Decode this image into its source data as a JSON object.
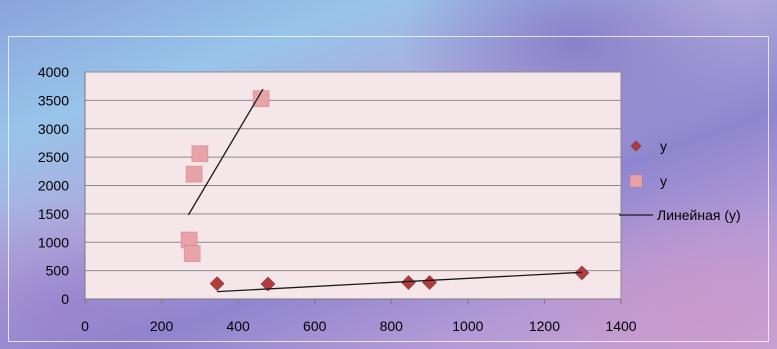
{
  "chart_data": {
    "type": "scatter",
    "title": "",
    "xlabel": "",
    "ylabel": "",
    "xlim": [
      0,
      1400
    ],
    "ylim": [
      0,
      4000
    ],
    "x_ticks": [
      0,
      200,
      400,
      600,
      800,
      1000,
      1200,
      1400
    ],
    "y_ticks": [
      0,
      500,
      1000,
      1500,
      2000,
      2500,
      3000,
      3500,
      4000
    ],
    "grid": "horizontal",
    "legend_position": "right",
    "plot_background": "#f5e6ea",
    "series": [
      {
        "name": "y",
        "marker": "diamond",
        "color": "#b23c3c",
        "points": [
          [
            345,
            270
          ],
          [
            478,
            265
          ],
          [
            845,
            290
          ],
          [
            900,
            290
          ],
          [
            1298,
            460
          ]
        ]
      },
      {
        "name": "y",
        "marker": "square",
        "color": "#e8a3a9",
        "points": [
          [
            460,
            3530
          ],
          [
            300,
            2560
          ],
          [
            285,
            2200
          ],
          [
            272,
            1040
          ],
          [
            280,
            800
          ]
        ]
      }
    ],
    "trendlines": [
      {
        "name": "Линейная (y)",
        "color": "#1a1a1a",
        "from": [
          270,
          1480
        ],
        "to": [
          465,
          3700
        ]
      },
      {
        "name": "",
        "color": "#1a1a1a",
        "from": [
          345,
          130
        ],
        "to": [
          1298,
          470
        ]
      }
    ]
  }
}
